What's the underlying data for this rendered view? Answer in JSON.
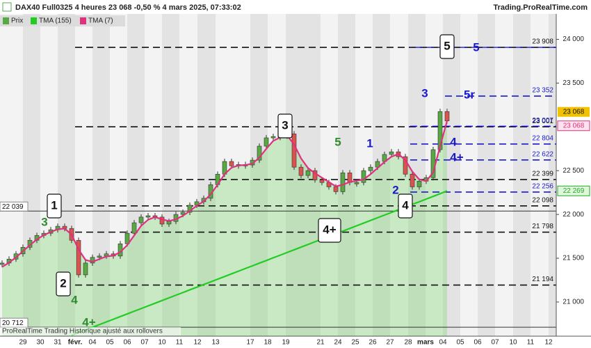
{
  "header": {
    "title": "DAX40 Full0325 4 heures 23 068 -0,50 % 4 mars 2025, 07:33:02",
    "source": "Trading.ProRealTime.com"
  },
  "footer": "ProRealTime Trading  Historique ajusté aux rollovers",
  "chart_data": {
    "type": "candlestick",
    "series": [
      {
        "name": "Prix",
        "color": "#58a844",
        "values": [
          21445,
          21490,
          21550,
          21625,
          21705,
          21760,
          21785,
          21825,
          21865,
          21840,
          21705,
          21310,
          21445,
          21510,
          21525,
          21550,
          21525,
          21665,
          21785,
          21905,
          21970,
          21985,
          21970,
          21890,
          21920,
          22000,
          22025,
          22105,
          22145,
          22185,
          22340,
          22460,
          22605,
          22555,
          22570,
          22565,
          22620,
          22780,
          22875,
          22890,
          22895,
          22920,
          22540,
          22445,
          22500,
          22395,
          22365,
          22315,
          22260,
          22475,
          22365,
          22365,
          22500,
          22540,
          22605,
          22685,
          22715,
          22660,
          22460,
          22315,
          22380,
          22420,
          22740,
          23175,
          23068
        ]
      },
      {
        "name": "TMA (155)",
        "color": "#22cc22",
        "values": [
          null,
          null,
          null,
          null,
          null,
          null,
          null,
          null,
          null,
          null,
          20620,
          20651,
          20681,
          20712,
          20742,
          20773,
          20803,
          20834,
          20864,
          20895,
          20925,
          20956,
          20986,
          21017,
          21047,
          21078,
          21108,
          21139,
          21169,
          21200,
          21230,
          21261,
          21291,
          21322,
          21352,
          21383,
          21413,
          21444,
          21474,
          21505,
          21535,
          21566,
          21596,
          21627,
          21657,
          21688,
          21718,
          21749,
          21779,
          21810,
          21840,
          21871,
          21901,
          21932,
          21962,
          21993,
          22023,
          22054,
          22084,
          22115,
          22145,
          22176,
          22206,
          22237,
          22269
        ]
      },
      {
        "name": "TMA (7)",
        "color": "#e0307f",
        "values": [
          21400,
          21450,
          21510,
          21580,
          21650,
          21715,
          21765,
          21800,
          21830,
          21840,
          21770,
          21600,
          21480,
          21460,
          21490,
          21520,
          21530,
          21570,
          21650,
          21760,
          21870,
          21940,
          21970,
          21945,
          21925,
          21945,
          21985,
          22040,
          22100,
          22150,
          22230,
          22340,
          22460,
          22535,
          22560,
          22565,
          22580,
          22650,
          22750,
          22840,
          22880,
          22900,
          22800,
          22640,
          22530,
          22470,
          22420,
          22370,
          22320,
          22340,
          22370,
          22385,
          22400,
          22460,
          22530,
          22600,
          22660,
          22690,
          22620,
          22490,
          22400,
          22380,
          22480,
          22780,
          23068
        ]
      }
    ],
    "x_labels": [
      "29",
      "30",
      "31",
      "févr.",
      "04",
      "05",
      "06",
      "07",
      "10",
      "11",
      "12",
      "13",
      "17",
      "18",
      "19",
      "21",
      "24",
      "25",
      "26",
      "27",
      "28",
      "mars",
      "04",
      "05",
      "06",
      "07",
      "10",
      "11",
      "12"
    ],
    "ylim": [
      20610,
      24290
    ],
    "yticks": [
      {
        "value": 21000,
        "label": "21 000"
      },
      {
        "value": 21500,
        "label": "21 500"
      },
      {
        "value": 22000,
        "label": "22 000"
      },
      {
        "value": 22500,
        "label": "22 500"
      },
      {
        "value": 23500,
        "label": "23 500"
      },
      {
        "value": 24000,
        "label": "24 000"
      }
    ],
    "levels": [
      {
        "value": 23908,
        "label": "23 908",
        "color": "black"
      },
      {
        "value": 23001,
        "label": "23 001",
        "color": "black"
      },
      {
        "value": 22399,
        "label": "22 399",
        "color": "black"
      },
      {
        "value": 22098,
        "label": "22 098",
        "color": "black"
      },
      {
        "value": 21798,
        "label": "21 798",
        "color": "black"
      },
      {
        "value": 21194,
        "label": "21 194",
        "color": "black"
      },
      {
        "value": 23352,
        "label": "23 352",
        "color": "blue"
      },
      {
        "value": 23007,
        "label": "23 007",
        "color": "blue"
      },
      {
        "value": 22804,
        "label": "22 804",
        "color": "blue"
      },
      {
        "value": 22622,
        "label": "22 622",
        "color": "blue"
      },
      {
        "value": 22256,
        "label": "22 256",
        "color": "blue"
      }
    ],
    "price_tags": [
      {
        "value": 23068,
        "label": "23 068",
        "color": "#f2c200"
      },
      {
        "value": 23068,
        "label": "23 068",
        "color": "#e0307f"
      },
      {
        "value": 22269,
        "label": "22 269",
        "color": "#22aa22"
      }
    ],
    "left_tags": [
      {
        "value": 22039,
        "label": "22 039"
      },
      {
        "value": 20712,
        "label": "20 712"
      }
    ],
    "annotations": [
      {
        "text": "1",
        "color": "black",
        "boxed": true
      },
      {
        "text": "2",
        "color": "black",
        "boxed": true
      },
      {
        "text": "3",
        "color": "black",
        "boxed": true
      },
      {
        "text": "4",
        "color": "black",
        "boxed": true
      },
      {
        "text": "4+",
        "color": "black",
        "boxed": true
      },
      {
        "text": "5",
        "color": "black",
        "boxed": true
      },
      {
        "text": "3",
        "color": "green",
        "boxed": false
      },
      {
        "text": "4",
        "color": "green",
        "boxed": false
      },
      {
        "text": "4+",
        "color": "green",
        "boxed": false
      },
      {
        "text": "5",
        "color": "green",
        "boxed": false
      },
      {
        "text": "1",
        "color": "blue",
        "boxed": false
      },
      {
        "text": "2",
        "color": "blue",
        "boxed": false
      },
      {
        "text": "3",
        "color": "blue",
        "boxed": false
      },
      {
        "text": "5",
        "color": "blue",
        "boxed": false
      },
      {
        "text": "5r",
        "color": "blue",
        "boxed": false
      },
      {
        "text": "4",
        "color": "blue",
        "boxed": false
      },
      {
        "text": "4+",
        "color": "blue",
        "boxed": false
      }
    ]
  }
}
